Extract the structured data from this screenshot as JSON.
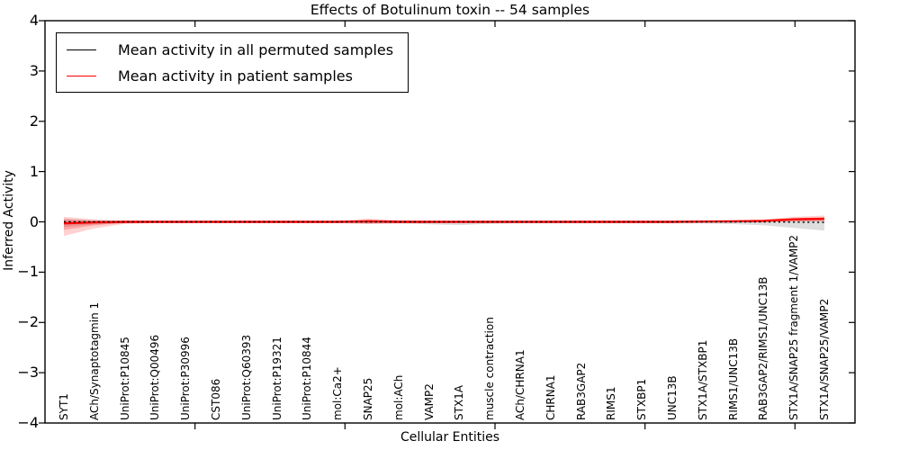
{
  "chart_data": {
    "type": "line",
    "title": "Effects of Botulinum toxin -- 54 samples",
    "xlabel": "Cellular Entities",
    "ylabel": "Inferred Activity",
    "ylim": [
      -4,
      4
    ],
    "xlim": [
      0,
      27
    ],
    "xticks_major": [
      5,
      10,
      15,
      20,
      25
    ],
    "ytick_values": [
      4,
      3,
      2,
      1,
      0,
      -1,
      -2,
      -3,
      -4
    ],
    "ytick_labels": [
      "4",
      "3",
      "2",
      "1",
      "0",
      "−1",
      "−2",
      "−3",
      "−4"
    ],
    "grid": false,
    "legend_position": "upper left",
    "categories": [
      "SYT1",
      "ACh/Synaptotagmin 1",
      "UniProt:P10845",
      "UniProt:Q00496",
      "UniProt:P30996",
      "CST086",
      "UniProt:Q60393",
      "UniProt:P19321",
      "UniProt:P10844",
      "mol:Ca2+",
      "SNAP25",
      "mol:ACh",
      "VAMP2",
      "STX1A",
      "muscle contraction",
      "ACh/CHRNA1",
      "CHRNA1",
      "RAB3GAP2",
      "RIMS1",
      "STXBP1",
      "UNC13B",
      "STX1A/STXBP1",
      "RIMS1/UNC13B",
      "RAB3GAP2/RIMS1/UNC13B",
      "STX1A/SNAP25 fragment 1/VAMP2",
      "STX1A/SNAP25/VAMP2"
    ],
    "series": [
      {
        "name": "Mean activity in all permuted samples",
        "color": "#000000",
        "style": "dashed",
        "values": [
          0,
          0,
          0,
          0,
          0,
          0,
          0,
          0,
          0,
          0,
          0,
          0,
          0,
          0,
          0,
          0,
          0,
          0,
          0,
          0,
          0,
          0,
          0,
          0,
          -0.005,
          -0.01
        ],
        "band_color": "#999999",
        "band_upper": [
          0.06,
          0.035,
          0.025,
          0.02,
          0.02,
          0.02,
          0.02,
          0.02,
          0.02,
          0.02,
          0.02,
          0.02,
          0.02,
          0.02,
          0.02,
          0.02,
          0.02,
          0.02,
          0.02,
          0.02,
          0.02,
          0.025,
          0.03,
          0.03,
          0.035,
          0.04
        ],
        "band_lower": [
          -0.1,
          -0.05,
          -0.03,
          -0.025,
          -0.025,
          -0.025,
          -0.025,
          -0.025,
          -0.025,
          -0.025,
          -0.03,
          -0.03,
          -0.05,
          -0.065,
          -0.04,
          -0.03,
          -0.03,
          -0.03,
          -0.03,
          -0.03,
          -0.03,
          -0.03,
          -0.045,
          -0.07,
          -0.12,
          -0.175
        ]
      },
      {
        "name": "Mean activity in patient samples",
        "color": "#ff0000",
        "style": "solid",
        "values": [
          -0.03,
          -0.01,
          0,
          0,
          0,
          0,
          0,
          0,
          0,
          0,
          0.01,
          0,
          0,
          0,
          0,
          0,
          0,
          0,
          0,
          0,
          0,
          0.005,
          0.01,
          0.02,
          0.05,
          0.06
        ],
        "band_color": "#ff0000",
        "band_upper": [
          0.1,
          0.05,
          0.02,
          0.02,
          0.02,
          0.02,
          0.02,
          0.02,
          0.02,
          0.02,
          0.065,
          0.035,
          0.02,
          0.02,
          0.02,
          0.02,
          0.02,
          0.02,
          0.02,
          0.02,
          0.02,
          0.02,
          0.025,
          0.045,
          0.1,
          0.125
        ],
        "band_lower": [
          -0.28,
          -0.13,
          -0.04,
          -0.025,
          -0.025,
          -0.025,
          -0.025,
          -0.025,
          -0.025,
          -0.025,
          -0.045,
          -0.03,
          -0.02,
          -0.02,
          -0.02,
          -0.02,
          -0.02,
          -0.02,
          -0.02,
          -0.02,
          -0.02,
          -0.015,
          -0.01,
          0.0,
          0.01,
          0.01
        ],
        "band_inner_upper": [
          0.05,
          0.02,
          0.01,
          0.01,
          0.01,
          0.01,
          0.01,
          0.01,
          0.01,
          0.01,
          0.04,
          0.02,
          0.01,
          0.01,
          0.01,
          0.01,
          0.01,
          0.01,
          0.01,
          0.01,
          0.01,
          0.01,
          0.015,
          0.03,
          0.07,
          0.09
        ],
        "band_inner_lower": [
          -0.16,
          -0.07,
          -0.02,
          -0.015,
          -0.015,
          -0.015,
          -0.015,
          -0.015,
          -0.015,
          -0.015,
          -0.03,
          -0.02,
          -0.01,
          -0.01,
          -0.01,
          -0.01,
          -0.01,
          -0.01,
          -0.01,
          -0.01,
          -0.01,
          -0.01,
          -0.005,
          0.005,
          0.015,
          0.02
        ]
      }
    ]
  }
}
